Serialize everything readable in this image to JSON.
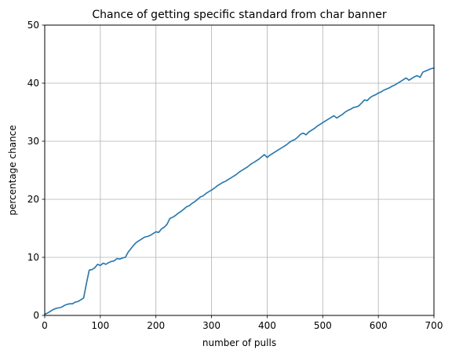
{
  "chart_data": {
    "type": "line",
    "title": "Chance of getting specific standard from char banner",
    "xlabel": "number of pulls",
    "ylabel": "percentage chance",
    "xlim": [
      0,
      700
    ],
    "ylim": [
      0,
      50
    ],
    "xticks": [
      0,
      100,
      200,
      300,
      400,
      500,
      600,
      700
    ],
    "yticks": [
      0,
      10,
      20,
      30,
      40,
      50
    ],
    "grid": true,
    "colors": {
      "line": "#1f77b4",
      "grid": "#b0b0b0",
      "axes": "#000000"
    },
    "series": [
      {
        "x": [
          0,
          5,
          10,
          15,
          20,
          25,
          30,
          35,
          40,
          45,
          50,
          55,
          60,
          65,
          70,
          75,
          80,
          85,
          90,
          95,
          100,
          105,
          110,
          115,
          120,
          125,
          130,
          135,
          140,
          145,
          150,
          155,
          160,
          165,
          170,
          175,
          180,
          185,
          190,
          195,
          200,
          205,
          210,
          215,
          220,
          225,
          230,
          235,
          240,
          245,
          250,
          255,
          260,
          265,
          270,
          275,
          280,
          285,
          290,
          295,
          300,
          305,
          310,
          315,
          320,
          325,
          330,
          335,
          340,
          345,
          350,
          355,
          360,
          365,
          370,
          375,
          380,
          385,
          390,
          395,
          400,
          405,
          410,
          415,
          420,
          425,
          430,
          435,
          440,
          445,
          450,
          455,
          460,
          465,
          470,
          475,
          480,
          485,
          490,
          495,
          500,
          505,
          510,
          515,
          520,
          525,
          530,
          535,
          540,
          545,
          550,
          555,
          560,
          565,
          570,
          575,
          580,
          585,
          590,
          595,
          600,
          605,
          610,
          615,
          620,
          625,
          630,
          635,
          640,
          645,
          650,
          655,
          660,
          665,
          670,
          675,
          680,
          685,
          690,
          695,
          700
        ],
        "y": [
          0.2,
          0.4,
          0.7,
          1.0,
          1.2,
          1.3,
          1.4,
          1.7,
          1.9,
          2.0,
          2.0,
          2.3,
          2.4,
          2.7,
          3.0,
          5.5,
          7.8,
          7.9,
          8.2,
          8.8,
          8.6,
          9.0,
          8.8,
          9.1,
          9.3,
          9.4,
          9.8,
          9.7,
          9.9,
          10.0,
          10.9,
          11.5,
          12.1,
          12.6,
          12.9,
          13.2,
          13.5,
          13.6,
          13.8,
          14.1,
          14.4,
          14.3,
          14.9,
          15.2,
          15.7,
          16.7,
          16.9,
          17.2,
          17.6,
          17.9,
          18.3,
          18.7,
          18.9,
          19.3,
          19.6,
          20.0,
          20.4,
          20.6,
          21.0,
          21.3,
          21.6,
          21.9,
          22.3,
          22.6,
          22.9,
          23.1,
          23.4,
          23.7,
          24.0,
          24.3,
          24.7,
          25.0,
          25.3,
          25.6,
          26.0,
          26.3,
          26.6,
          26.9,
          27.3,
          27.7,
          27.2,
          27.6,
          27.9,
          28.2,
          28.5,
          28.8,
          29.1,
          29.4,
          29.8,
          30.1,
          30.3,
          30.7,
          31.2,
          31.4,
          31.1,
          31.6,
          31.9,
          32.2,
          32.6,
          32.9,
          33.2,
          33.5,
          33.8,
          34.1,
          34.4,
          34.0,
          34.3,
          34.6,
          35.0,
          35.3,
          35.5,
          35.8,
          35.9,
          36.1,
          36.6,
          37.1,
          37.0,
          37.5,
          37.8,
          38.0,
          38.3,
          38.5,
          38.8,
          39.0,
          39.2,
          39.5,
          39.7,
          40.0,
          40.3,
          40.6,
          40.9,
          40.5,
          40.8,
          41.1,
          41.3,
          41.0,
          41.9,
          42.1,
          42.3,
          42.5,
          42.6
        ]
      }
    ]
  }
}
